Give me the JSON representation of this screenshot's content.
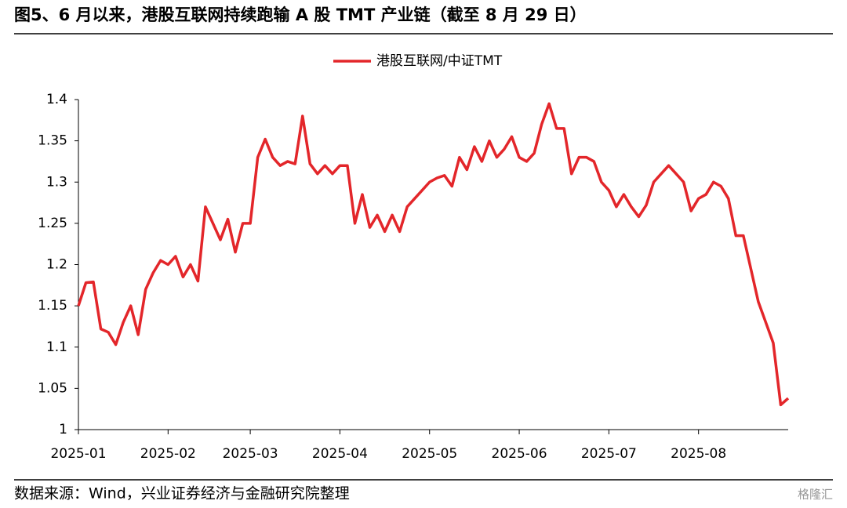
{
  "chart_data": {
    "type": "line",
    "title": "图5、6 月以来，港股互联网持续跑输 A 股 TMT 产业链（截至 8 月 29 日）",
    "source": "数据来源：Wind，兴业证券经济与金融研究院整理",
    "watermark": "格隆汇",
    "categories": [
      "2025-01",
      null,
      null,
      null,
      null,
      null,
      null,
      null,
      null,
      null,
      null,
      null,
      "2025-02",
      null,
      null,
      null,
      null,
      null,
      null,
      null,
      null,
      null,
      null,
      "2025-03",
      null,
      null,
      null,
      null,
      null,
      null,
      null,
      null,
      null,
      null,
      null,
      "2025-04",
      null,
      null,
      null,
      null,
      null,
      null,
      null,
      null,
      null,
      null,
      null,
      "2025-05",
      null,
      null,
      null,
      null,
      null,
      null,
      null,
      null,
      null,
      null,
      null,
      "2025-06",
      null,
      null,
      null,
      null,
      null,
      null,
      null,
      null,
      null,
      null,
      null,
      "2025-07",
      null,
      null,
      null,
      null,
      null,
      null,
      null,
      null,
      null,
      null,
      null,
      "2025-08",
      null,
      null,
      null,
      null,
      null,
      null,
      null,
      null,
      null,
      null,
      null,
      null
    ],
    "series": [
      {
        "name": "港股互联网/中证TMT",
        "color": "#e3262a",
        "values": [
          1.15,
          1.178,
          1.179,
          1.122,
          1.118,
          1.103,
          1.13,
          1.15,
          1.115,
          1.17,
          1.19,
          1.205,
          1.2,
          1.21,
          1.185,
          1.2,
          1.18,
          1.27,
          1.25,
          1.23,
          1.255,
          1.215,
          1.25,
          1.25,
          1.33,
          1.352,
          1.33,
          1.32,
          1.325,
          1.322,
          1.38,
          1.322,
          1.31,
          1.32,
          1.31,
          1.32,
          1.32,
          1.25,
          1.285,
          1.245,
          1.26,
          1.24,
          1.26,
          1.24,
          1.27,
          1.28,
          1.29,
          1.3,
          1.305,
          1.308,
          1.295,
          1.33,
          1.315,
          1.343,
          1.325,
          1.35,
          1.33,
          1.34,
          1.355,
          1.33,
          1.325,
          1.335,
          1.37,
          1.395,
          1.365,
          1.365,
          1.31,
          1.33,
          1.33,
          1.325,
          1.3,
          1.29,
          1.27,
          1.285,
          1.27,
          1.258,
          1.272,
          1.3,
          1.31,
          1.32,
          1.31,
          1.3,
          1.265,
          1.28,
          1.285,
          1.3,
          1.295,
          1.28,
          1.235,
          1.235,
          1.195,
          1.155,
          1.13,
          1.105,
          1.03,
          1.038
        ]
      }
    ],
    "ylim": [
      1,
      1.4
    ],
    "yticks": [
      1,
      1.05,
      1.1,
      1.15,
      1.2,
      1.25,
      1.3,
      1.35,
      1.4
    ],
    "legend": "top"
  }
}
